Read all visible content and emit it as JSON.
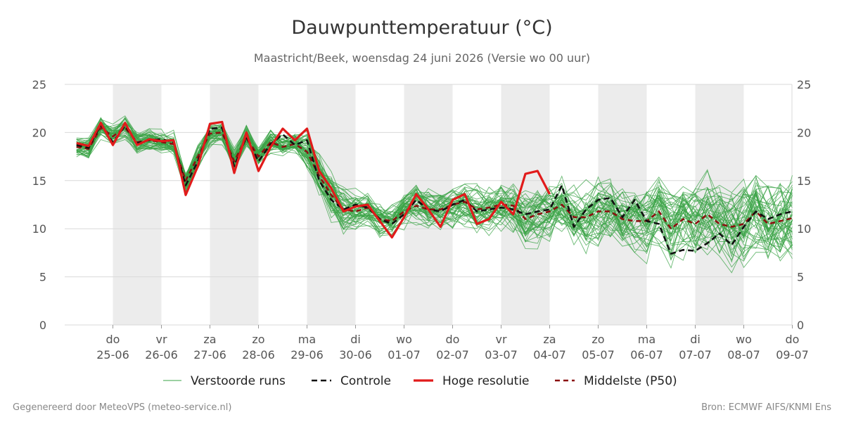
{
  "title": "Dauwpunttemperatuur (°C)",
  "subtitle": "Maastricht/Beek, woensdag 24 juni 2026 (Versie wo 00 uur)",
  "footer_left": "Gegenereerd door MeteoVPS (meteo-service.nl)",
  "footer_right": "Bron: ECMWF AIFS/KNMI Ens",
  "colors": {
    "ensemble": "#3aa346",
    "control": "#111111",
    "high_res": "#e11b1b",
    "median": "#8b1010",
    "weekend_band": "#ececec",
    "grid": "#d9d9d9"
  },
  "chart_data": {
    "type": "line",
    "ylim": [
      0,
      25
    ],
    "yticks": [
      0,
      5,
      10,
      15,
      20,
      25
    ],
    "xlim": [
      -0.75,
      14
    ],
    "grid": true,
    "legend_position": "bottom",
    "x_tick_labels": [
      {
        "x": 0,
        "day": "do",
        "date": "25-06"
      },
      {
        "x": 1,
        "day": "vr",
        "date": "26-06"
      },
      {
        "x": 2,
        "day": "za",
        "date": "27-06"
      },
      {
        "x": 3,
        "day": "zo",
        "date": "28-06"
      },
      {
        "x": 4,
        "day": "ma",
        "date": "29-06"
      },
      {
        "x": 5,
        "day": "di",
        "date": "30-06"
      },
      {
        "x": 6,
        "day": "wo",
        "date": "01-07"
      },
      {
        "x": 7,
        "day": "do",
        "date": "02-07"
      },
      {
        "x": 8,
        "day": "vr",
        "date": "03-07"
      },
      {
        "x": 9,
        "day": "za",
        "date": "04-07"
      },
      {
        "x": 10,
        "day": "zo",
        "date": "05-07"
      },
      {
        "x": 11,
        "day": "ma",
        "date": "06-07"
      },
      {
        "x": 12,
        "day": "di",
        "date": "07-07"
      },
      {
        "x": 13,
        "day": "wo",
        "date": "08-07"
      },
      {
        "x": 14,
        "day": "do",
        "date": "09-07"
      }
    ],
    "shaded_days": [
      [
        0,
        1
      ],
      [
        2,
        3
      ],
      [
        4,
        5
      ],
      [
        6,
        7
      ],
      [
        8,
        9
      ],
      [
        10,
        11
      ],
      [
        12,
        13
      ]
    ],
    "legend": [
      "Verstoorde runs",
      "Controle",
      "Hoge resolutie",
      "Middelste (P50)"
    ],
    "series": [
      {
        "name": "Hoge resolutie",
        "style": "solid-thick",
        "x": [
          -0.75,
          -0.5,
          -0.25,
          0,
          0.25,
          0.5,
          0.75,
          1,
          1.25,
          1.5,
          1.75,
          2,
          2.25,
          2.5,
          2.75,
          3,
          3.25,
          3.5,
          3.75,
          4,
          4.25,
          4.5,
          4.75,
          5,
          5.25,
          5.5,
          5.75,
          6,
          6.25,
          6.5,
          6.75,
          7,
          7.25,
          7.5,
          7.75,
          8,
          8.25,
          8.5,
          8.75,
          9
        ],
        "values": [
          18.9,
          18.6,
          21.0,
          18.7,
          21.0,
          18.7,
          19.3,
          19.1,
          19.2,
          13.5,
          16.5,
          20.9,
          21.1,
          15.8,
          20.0,
          16.0,
          18.5,
          20.4,
          19.2,
          20.4,
          16.0,
          14.2,
          11.8,
          12.3,
          12.5,
          10.8,
          9.1,
          11.2,
          13.6,
          12.0,
          10.2,
          13.0,
          13.6,
          10.5,
          11.0,
          12.8,
          11.5,
          15.7,
          16.0,
          13.6
        ]
      },
      {
        "name": "Controle",
        "style": "dashed",
        "x": [
          -0.75,
          -0.5,
          -0.25,
          0,
          0.25,
          0.5,
          0.75,
          1,
          1.25,
          1.5,
          1.75,
          2,
          2.25,
          2.5,
          2.75,
          3,
          3.25,
          3.5,
          3.75,
          4,
          4.25,
          4.5,
          4.75,
          5,
          5.25,
          5.5,
          5.75,
          6,
          6.25,
          6.5,
          6.75,
          7,
          7.25,
          7.5,
          7.75,
          8,
          8.25,
          8.5,
          8.75,
          9,
          9.25,
          9.5,
          9.75,
          10,
          10.25,
          10.5,
          10.75,
          11,
          11.25,
          11.5,
          11.75,
          12,
          12.25,
          12.5,
          12.75,
          13,
          13.25,
          13.5,
          13.75,
          14
        ],
        "values": [
          18.7,
          18.4,
          20.8,
          19.0,
          20.7,
          18.9,
          19.2,
          19.3,
          19.0,
          14.5,
          17.0,
          20.4,
          20.5,
          16.5,
          19.5,
          17.0,
          18.8,
          19.8,
          18.7,
          19.2,
          15.0,
          13.0,
          12.0,
          12.5,
          12.2,
          11.0,
          10.5,
          11.5,
          13.0,
          12.0,
          11.8,
          12.5,
          13.0,
          11.8,
          12.0,
          12.2,
          12.0,
          11.5,
          11.8,
          12.0,
          14.5,
          10.2,
          12.0,
          13.0,
          13.2,
          11.2,
          13.0,
          10.8,
          10.5,
          7.4,
          7.8,
          7.7,
          8.5,
          9.5,
          8.3,
          10.2,
          11.8,
          11.0,
          11.5,
          11.8
        ]
      },
      {
        "name": "Middelste (P50)",
        "style": "dashed-dark",
        "x": [
          -0.75,
          -0.5,
          -0.25,
          0,
          0.25,
          0.5,
          0.75,
          1,
          1.25,
          1.5,
          1.75,
          2,
          2.25,
          2.5,
          2.75,
          3,
          3.25,
          3.5,
          3.75,
          4,
          4.25,
          4.5,
          4.75,
          5,
          5.25,
          5.5,
          5.75,
          6,
          6.25,
          6.5,
          6.75,
          7,
          7.25,
          7.5,
          7.75,
          8,
          8.25,
          8.5,
          8.75,
          9,
          9.25,
          9.5,
          9.75,
          10,
          10.25,
          10.5,
          10.75,
          11,
          11.25,
          11.5,
          11.75,
          12,
          12.25,
          12.5,
          12.75,
          13,
          13.25,
          13.5,
          13.75,
          14
        ],
        "values": [
          18.5,
          18.3,
          20.5,
          19.6,
          20.5,
          19.0,
          19.2,
          19.0,
          18.8,
          15.0,
          17.5,
          19.9,
          20.0,
          17.0,
          19.5,
          17.5,
          19.0,
          18.5,
          18.8,
          18.0,
          15.5,
          13.5,
          12.0,
          11.8,
          12.2,
          11.0,
          10.8,
          11.8,
          12.4,
          12.0,
          12.0,
          12.5,
          12.8,
          12.0,
          12.2,
          12.5,
          12.4,
          11.0,
          11.5,
          11.8,
          12.5,
          11.2,
          11.2,
          11.8,
          11.8,
          11.0,
          10.8,
          10.8,
          11.8,
          10.0,
          11.0,
          10.5,
          11.5,
          10.5,
          10.2,
          10.5,
          11.8,
          10.5,
          10.8,
          11.1
        ]
      }
    ]
  }
}
